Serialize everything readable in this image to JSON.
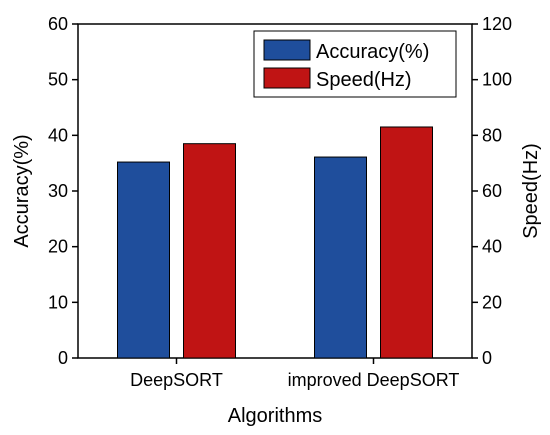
{
  "chart_data": {
    "type": "bar",
    "categories": [
      "DeepSORT",
      "improved DeepSORT"
    ],
    "xlabel": "Algorithms",
    "series": [
      {
        "name": "Accuracy(%)",
        "axis": "left",
        "color": "#1f4e9c",
        "values": [
          35.2,
          36.1
        ]
      },
      {
        "name": "Speed(Hz)",
        "axis": "right",
        "color": "#c01414",
        "values": [
          77,
          83
        ]
      }
    ],
    "y_left": {
      "label": "Accuracy(%)",
      "lim": [
        0,
        60
      ],
      "ticks": [
        0,
        10,
        20,
        30,
        40,
        50,
        60
      ]
    },
    "y_right": {
      "label": "Speed(Hz)",
      "lim": [
        0,
        120
      ],
      "ticks": [
        0,
        20,
        40,
        60,
        80,
        100,
        120
      ]
    },
    "legend": {
      "placement": "top-right"
    },
    "grid": false
  }
}
